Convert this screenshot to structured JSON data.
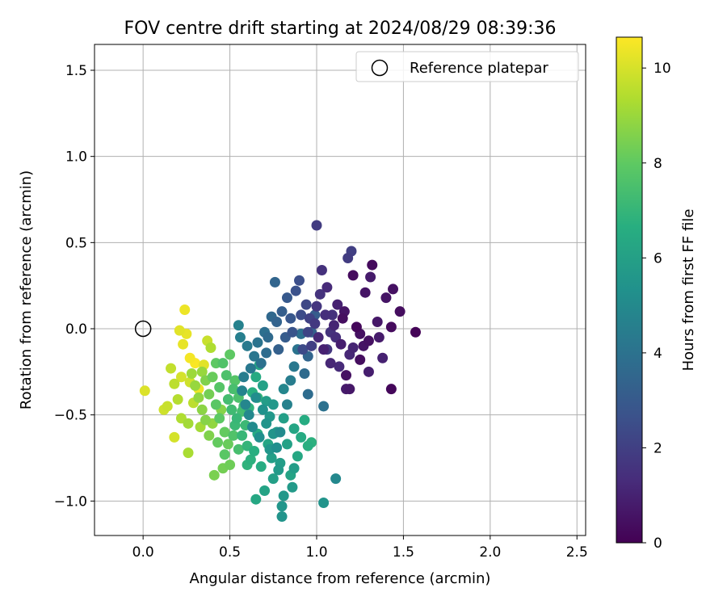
{
  "chart_data": {
    "type": "scatter",
    "title": "FOV centre drift starting at 2024/08/29 08:39:36",
    "xlabel": "Angular distance from reference (arcmin)",
    "ylabel": "Rotation from reference (arcmin)",
    "xlim": [
      -0.28,
      2.55
    ],
    "ylim": [
      -1.2,
      1.65
    ],
    "x_ticks": [
      0.0,
      0.5,
      1.0,
      1.5,
      2.0,
      2.5
    ],
    "x_tick_labels": [
      "0.0",
      "0.5",
      "1.0",
      "1.5",
      "2.0",
      "2.5"
    ],
    "y_ticks": [
      -1.0,
      -0.5,
      0.0,
      0.5,
      1.0,
      1.5
    ],
    "y_tick_labels": [
      "−1.0",
      "−0.5",
      "0.0",
      "0.5",
      "1.0",
      "1.5"
    ],
    "grid": true,
    "legend": {
      "position": "upper right",
      "entries": [
        {
          "label": "Reference platepar",
          "marker": "open-circle"
        }
      ]
    },
    "reference_point": {
      "x": 0.0,
      "y": 0.0
    },
    "colorbar": {
      "label": "Hours from first FF file",
      "colormap": "viridis",
      "range": [
        0,
        10.65
      ],
      "ticks": [
        0,
        2,
        4,
        6,
        8,
        10
      ],
      "tick_labels": [
        "0",
        "2",
        "4",
        "6",
        "8",
        "10"
      ]
    },
    "series": [
      {
        "color_by": "hours",
        "columns": [
          "x",
          "y",
          "hours"
        ],
        "points": [
          [
            1.57,
            -0.02,
            0.1
          ],
          [
            1.43,
            -0.35,
            0.2
          ],
          [
            1.43,
            0.01,
            0.3
          ],
          [
            1.48,
            0.1,
            0.4
          ],
          [
            1.44,
            0.23,
            0.5
          ],
          [
            1.4,
            0.18,
            0.6
          ],
          [
            1.35,
            0.04,
            0.7
          ],
          [
            1.32,
            0.37,
            0.3
          ],
          [
            1.31,
            0.3,
            0.8
          ],
          [
            1.3,
            -0.25,
            0.9
          ],
          [
            1.3,
            -0.07,
            0.5
          ],
          [
            1.28,
            0.21,
            0.6
          ],
          [
            1.25,
            -0.18,
            0.4
          ],
          [
            1.23,
            0.01,
            0.2
          ],
          [
            1.21,
            0.31,
            0.3
          ],
          [
            1.19,
            -0.35,
            0.7
          ],
          [
            1.17,
            -0.35,
            0.8
          ],
          [
            1.17,
            -0.27,
            0.5
          ],
          [
            1.16,
            0.1,
            0.6
          ],
          [
            1.15,
            0.06,
            0.4
          ],
          [
            1.14,
            -0.09,
            0.9
          ],
          [
            1.12,
            0.14,
            1.0
          ],
          [
            1.1,
            0.02,
            1.1
          ],
          [
            1.08,
            -0.2,
            1.2
          ],
          [
            1.06,
            0.24,
            1.3
          ],
          [
            1.05,
            0.08,
            1.4
          ],
          [
            1.04,
            -0.12,
            1.0
          ],
          [
            1.03,
            0.34,
            1.5
          ],
          [
            1.02,
            0.2,
            1.6
          ],
          [
            1.01,
            -0.05,
            1.2
          ],
          [
            1.0,
            0.13,
            1.7
          ],
          [
            0.99,
            0.03,
            1.8
          ],
          [
            1.0,
            0.6,
            1.9
          ],
          [
            1.2,
            0.45,
            2.0
          ],
          [
            1.18,
            0.41,
            1.9
          ],
          [
            1.25,
            -0.03,
            0.5
          ],
          [
            1.27,
            -0.1,
            0.6
          ],
          [
            1.36,
            -0.05,
            0.8
          ],
          [
            1.38,
            -0.17,
            1.0
          ],
          [
            1.21,
            -0.11,
            1.1
          ],
          [
            1.19,
            -0.15,
            1.2
          ],
          [
            1.13,
            -0.22,
            1.3
          ],
          [
            1.11,
            -0.05,
            1.4
          ],
          [
            1.09,
            0.08,
            1.5
          ],
          [
            1.08,
            -0.02,
            1.6
          ],
          [
            1.06,
            -0.12,
            1.7
          ],
          [
            0.97,
            -0.1,
            2.0
          ],
          [
            0.96,
            0.06,
            2.1
          ],
          [
            0.95,
            -0.02,
            2.2
          ],
          [
            0.94,
            0.14,
            2.3
          ],
          [
            0.92,
            -0.12,
            2.4
          ],
          [
            0.91,
            0.08,
            2.5
          ],
          [
            0.9,
            0.28,
            2.6
          ],
          [
            0.88,
            0.22,
            2.7
          ],
          [
            0.86,
            -0.02,
            2.8
          ],
          [
            0.85,
            0.06,
            2.9
          ],
          [
            0.83,
            0.18,
            3.0
          ],
          [
            0.82,
            -0.05,
            3.1
          ],
          [
            0.8,
            0.1,
            3.2
          ],
          [
            0.78,
            -0.12,
            3.3
          ],
          [
            0.77,
            0.04,
            3.4
          ],
          [
            0.76,
            0.27,
            3.5
          ],
          [
            0.74,
            0.07,
            3.6
          ],
          [
            0.72,
            -0.05,
            3.7
          ],
          [
            0.71,
            -0.14,
            3.8
          ],
          [
            0.7,
            -0.02,
            3.9
          ],
          [
            0.68,
            -0.2,
            4.0
          ],
          [
            0.66,
            -0.08,
            4.1
          ],
          [
            0.64,
            -0.16,
            4.2
          ],
          [
            0.62,
            -0.23,
            4.3
          ],
          [
            0.6,
            -0.1,
            4.4
          ],
          [
            0.58,
            -0.28,
            4.5
          ],
          [
            0.56,
            -0.05,
            4.6
          ],
          [
            0.55,
            0.02,
            4.7
          ],
          [
            0.57,
            -0.36,
            4.8
          ],
          [
            0.59,
            -0.44,
            4.9
          ],
          [
            0.61,
            -0.5,
            5.0
          ],
          [
            0.63,
            -0.57,
            5.1
          ],
          [
            0.65,
            -0.4,
            5.2
          ],
          [
            0.67,
            -0.63,
            5.3
          ],
          [
            0.69,
            -0.47,
            5.4
          ],
          [
            0.71,
            -0.55,
            5.5
          ],
          [
            0.73,
            -0.7,
            5.6
          ],
          [
            0.75,
            -0.44,
            5.7
          ],
          [
            0.77,
            -0.6,
            5.8
          ],
          [
            0.79,
            -0.78,
            5.9
          ],
          [
            0.81,
            -0.52,
            6.0
          ],
          [
            0.83,
            -0.67,
            6.1
          ],
          [
            0.85,
            -0.85,
            6.2
          ],
          [
            0.87,
            -0.58,
            6.3
          ],
          [
            0.89,
            -0.74,
            6.4
          ],
          [
            0.91,
            -0.63,
            6.5
          ],
          [
            0.93,
            -0.53,
            6.6
          ],
          [
            0.95,
            -0.68,
            6.7
          ],
          [
            0.97,
            -0.66,
            6.8
          ],
          [
            1.04,
            -1.01,
            5.5
          ],
          [
            1.11,
            -0.87,
            5.0
          ],
          [
            1.04,
            -0.45,
            4.0
          ],
          [
            0.95,
            -0.38,
            3.8
          ],
          [
            0.8,
            -1.09,
            5.5
          ],
          [
            0.8,
            -1.03,
            5.6
          ],
          [
            0.81,
            -0.97,
            5.7
          ],
          [
            0.86,
            -0.92,
            5.8
          ],
          [
            0.87,
            -0.81,
            5.9
          ],
          [
            0.75,
            -0.87,
            6.0
          ],
          [
            0.7,
            -0.94,
            6.2
          ],
          [
            0.65,
            -0.99,
            6.4
          ],
          [
            0.68,
            -0.8,
            6.6
          ],
          [
            0.62,
            -0.76,
            6.8
          ],
          [
            0.6,
            -0.68,
            7.0
          ],
          [
            0.57,
            -0.62,
            7.1
          ],
          [
            0.53,
            -0.56,
            7.2
          ],
          [
            0.51,
            -0.47,
            7.3
          ],
          [
            0.49,
            -0.41,
            7.4
          ],
          [
            0.52,
            -0.35,
            7.5
          ],
          [
            0.48,
            -0.27,
            7.6
          ],
          [
            0.46,
            -0.2,
            7.7
          ],
          [
            0.44,
            -0.34,
            7.8
          ],
          [
            0.42,
            -0.44,
            7.9
          ],
          [
            0.44,
            -0.52,
            8.0
          ],
          [
            0.47,
            -0.6,
            8.1
          ],
          [
            0.49,
            -0.67,
            8.2
          ],
          [
            0.5,
            -0.79,
            8.3
          ],
          [
            0.46,
            -0.81,
            8.4
          ],
          [
            0.41,
            -0.85,
            8.5
          ],
          [
            0.38,
            -0.62,
            8.6
          ],
          [
            0.36,
            -0.53,
            8.7
          ],
          [
            0.34,
            -0.47,
            8.8
          ],
          [
            0.32,
            -0.4,
            8.9
          ],
          [
            0.3,
            -0.33,
            9.0
          ],
          [
            0.28,
            -0.26,
            9.1
          ],
          [
            0.26,
            -0.55,
            9.2
          ],
          [
            0.26,
            -0.72,
            9.3
          ],
          [
            0.22,
            -0.52,
            9.4
          ],
          [
            0.2,
            -0.41,
            9.5
          ],
          [
            0.18,
            -0.32,
            9.6
          ],
          [
            0.16,
            -0.23,
            9.7
          ],
          [
            0.14,
            -0.45,
            9.8
          ],
          [
            0.12,
            -0.47,
            9.9
          ],
          [
            0.18,
            -0.63,
            10.0
          ],
          [
            0.01,
            -0.36,
            10.1
          ],
          [
            0.21,
            -0.01,
            10.2
          ],
          [
            0.23,
            -0.09,
            10.3
          ],
          [
            0.24,
            0.11,
            10.4
          ],
          [
            0.27,
            -0.17,
            10.5
          ],
          [
            0.3,
            -0.2,
            10.6
          ],
          [
            0.32,
            -0.35,
            10.4
          ],
          [
            0.35,
            -0.21,
            10.2
          ],
          [
            0.37,
            -0.07,
            9.8
          ],
          [
            0.39,
            -0.11,
            9.4
          ],
          [
            0.42,
            -0.2,
            8.0
          ],
          [
            0.4,
            -0.28,
            8.2
          ],
          [
            0.38,
            -0.38,
            8.4
          ],
          [
            0.36,
            -0.3,
            8.6
          ],
          [
            0.34,
            -0.25,
            9.0
          ],
          [
            0.5,
            -0.15,
            8.0
          ],
          [
            0.53,
            -0.3,
            7.8
          ],
          [
            0.55,
            -0.4,
            7.6
          ],
          [
            0.57,
            -0.48,
            7.4
          ],
          [
            0.59,
            -0.56,
            7.2
          ],
          [
            0.61,
            -0.46,
            6.9
          ],
          [
            0.63,
            -0.37,
            6.7
          ],
          [
            0.65,
            -0.28,
            6.5
          ],
          [
            0.67,
            -0.21,
            6.3
          ],
          [
            0.69,
            -0.33,
            6.1
          ],
          [
            0.71,
            -0.42,
            5.9
          ],
          [
            0.73,
            -0.51,
            5.7
          ],
          [
            0.75,
            -0.61,
            5.5
          ],
          [
            0.77,
            -0.69,
            5.3
          ],
          [
            0.79,
            -0.6,
            5.1
          ],
          [
            0.81,
            -0.35,
            4.9
          ],
          [
            0.83,
            -0.44,
            4.7
          ],
          [
            0.85,
            -0.3,
            4.5
          ],
          [
            0.87,
            -0.22,
            4.3
          ],
          [
            0.89,
            -0.12,
            4.1
          ],
          [
            0.91,
            -0.03,
            3.9
          ],
          [
            0.93,
            -0.26,
            3.7
          ],
          [
            0.95,
            -0.16,
            3.5
          ],
          [
            0.97,
            -0.02,
            3.3
          ],
          [
            0.99,
            0.08,
            3.1
          ],
          [
            0.66,
            -0.4,
            7.0
          ],
          [
            0.58,
            -0.45,
            7.3
          ],
          [
            0.54,
            -0.52,
            7.1
          ],
          [
            0.45,
            -0.47,
            8.7
          ],
          [
            0.4,
            -0.55,
            8.9
          ],
          [
            0.33,
            -0.57,
            9.2
          ],
          [
            0.29,
            -0.43,
            9.6
          ],
          [
            0.27,
            -0.31,
            9.9
          ],
          [
            0.25,
            -0.03,
            10.3
          ],
          [
            0.22,
            -0.28,
            10.0
          ],
          [
            0.43,
            -0.66,
            8.1
          ],
          [
            0.47,
            -0.73,
            7.9
          ],
          [
            0.52,
            -0.62,
            7.7
          ],
          [
            0.55,
            -0.7,
            7.5
          ],
          [
            0.6,
            -0.79,
            6.9
          ],
          [
            0.64,
            -0.71,
            6.7
          ],
          [
            0.66,
            -0.61,
            6.5
          ],
          [
            0.72,
            -0.67,
            6.3
          ],
          [
            0.74,
            -0.75,
            6.0
          ],
          [
            0.78,
            -0.82,
            5.8
          ]
        ]
      }
    ]
  }
}
